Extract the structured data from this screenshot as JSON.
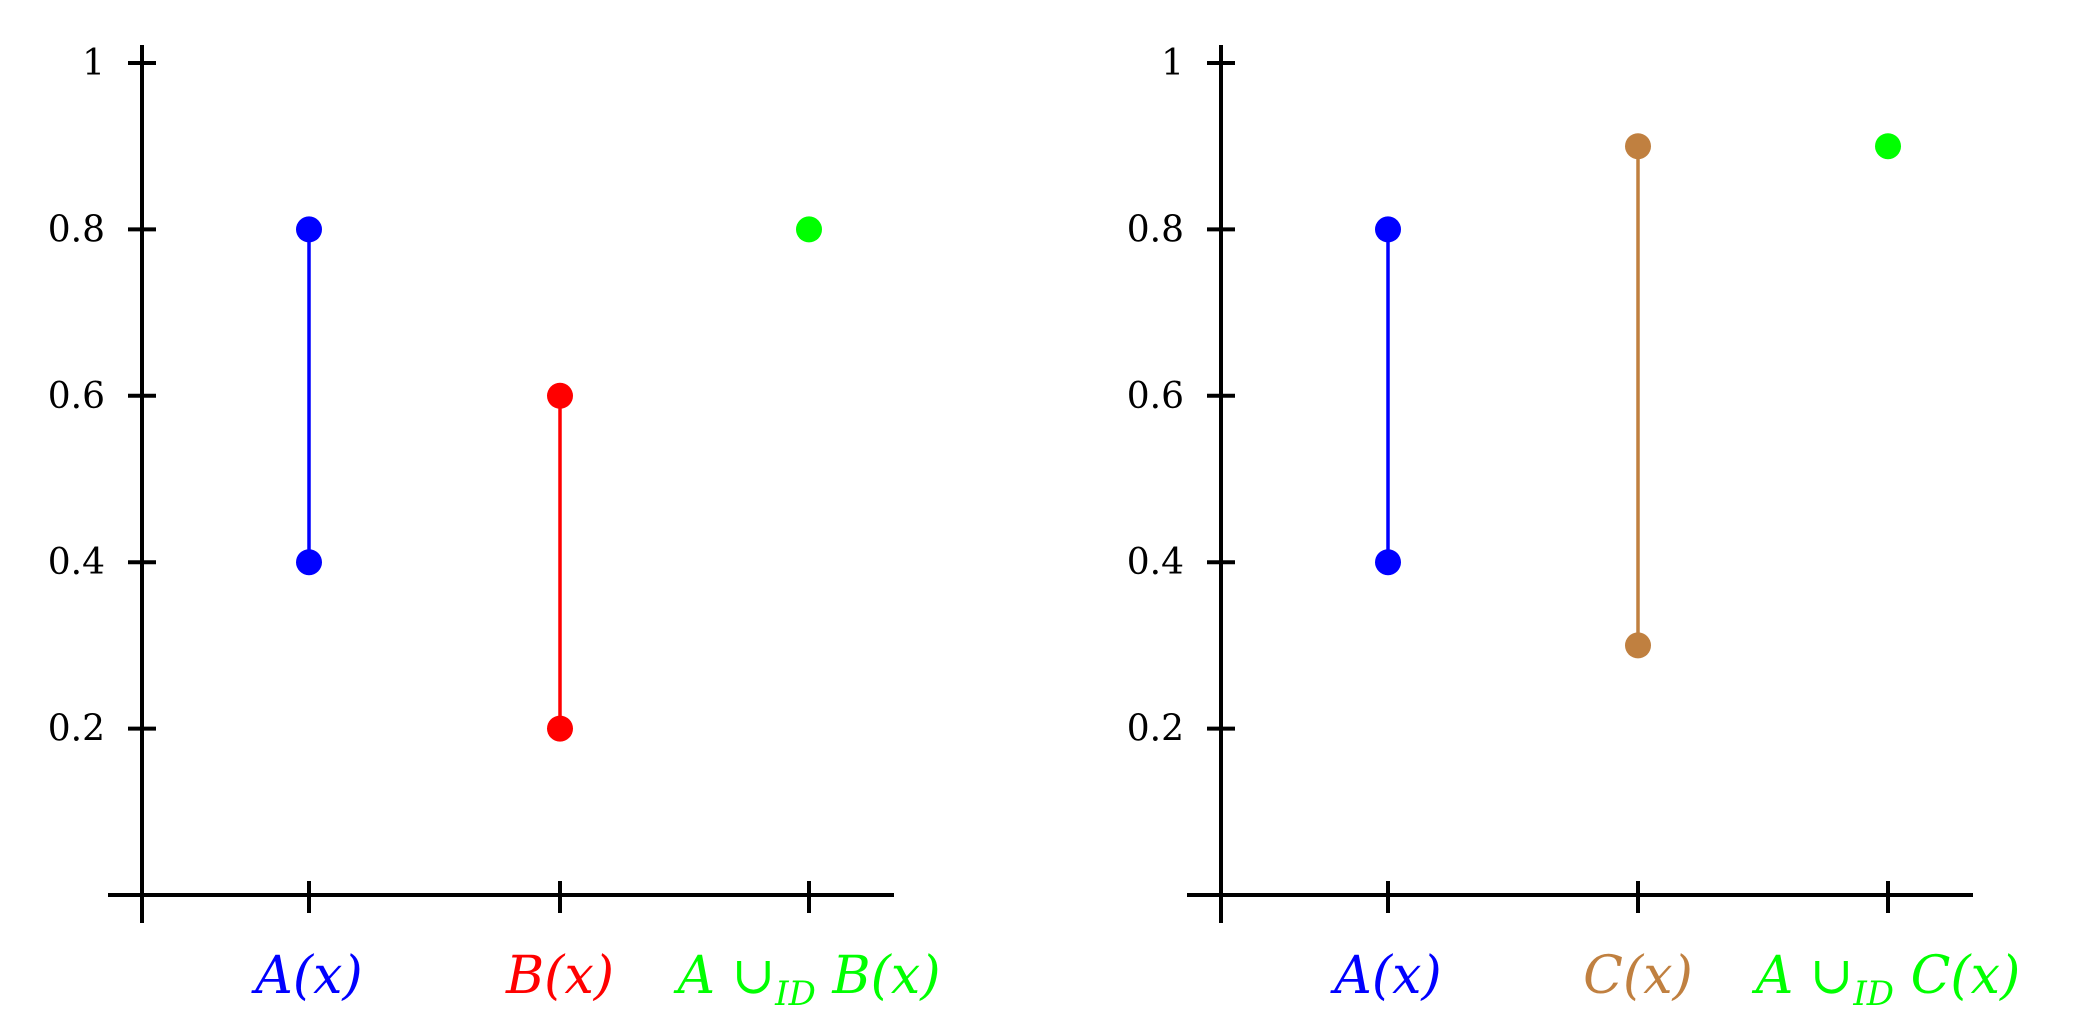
{
  "chart_data": [
    {
      "type": "scatter",
      "ylim": [
        0,
        1
      ],
      "yticks": [
        "1",
        "0.8",
        "0.6",
        "0.4",
        "0.2"
      ],
      "ytick_values": [
        1,
        0.8,
        0.6,
        0.4,
        0.2
      ],
      "grid": false,
      "categories": [
        "A(x)",
        "B(x)",
        "A ∪ID B(x)"
      ],
      "category_colors": [
        "#0000ff",
        "#ff0000",
        "#00ff00"
      ],
      "series": [
        {
          "category": "A(x)",
          "values": [
            0.4,
            0.8
          ],
          "color": "#0000ff"
        },
        {
          "category": "B(x)",
          "values": [
            0.2,
            0.6
          ],
          "color": "#ff0000"
        },
        {
          "category": "A ∪ID B(x)",
          "values": [
            0.8
          ],
          "color": "#00ff00"
        }
      ]
    },
    {
      "type": "scatter",
      "ylim": [
        0,
        1
      ],
      "yticks": [
        "1",
        "0.8",
        "0.6",
        "0.4",
        "0.2"
      ],
      "ytick_values": [
        1,
        0.8,
        0.6,
        0.4,
        0.2
      ],
      "grid": false,
      "categories": [
        "A(x)",
        "C(x)",
        "A ∪ID C(x)"
      ],
      "category_colors": [
        "#0000ff",
        "#c08040",
        "#00ff00"
      ],
      "series": [
        {
          "category": "A(x)",
          "values": [
            0.4,
            0.8
          ],
          "color": "#0000ff"
        },
        {
          "category": "C(x)",
          "values": [
            0.3,
            0.9
          ],
          "color": "#c08040"
        },
        {
          "category": "A ∪ID C(x)",
          "values": [
            0.9
          ],
          "color": "#00ff00"
        }
      ]
    }
  ]
}
